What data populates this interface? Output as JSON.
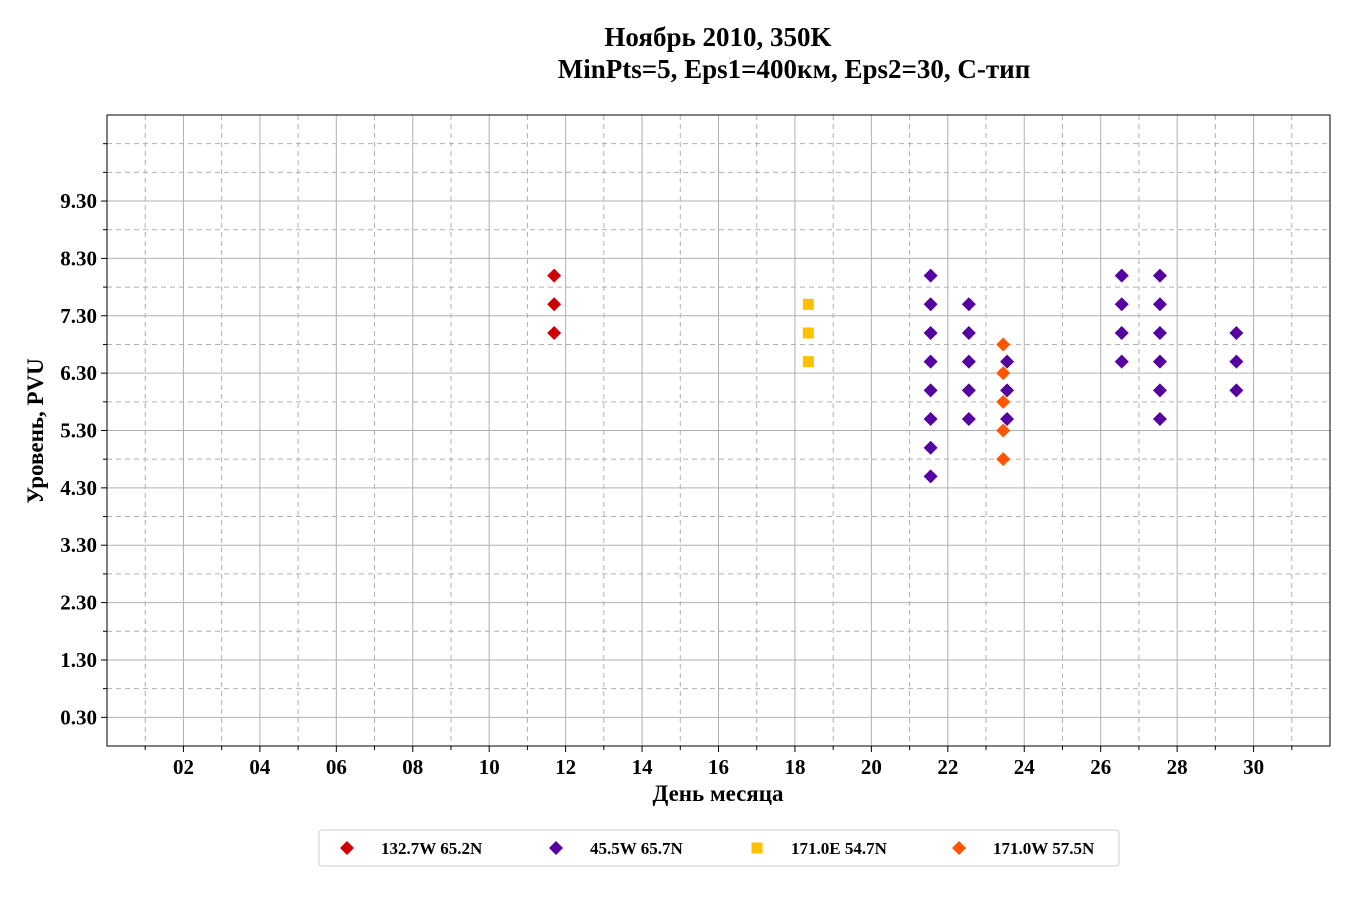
{
  "chart_data": {
    "type": "scatter",
    "title": "Ноябрь 2010, 350K",
    "subtitle": "MinPts=5, Eps1=400км, Eps2=30, C-тип",
    "xlabel": "День месяца",
    "ylabel": "Уровень, PVU",
    "xlim": [
      0,
      32
    ],
    "ylim": [
      -0.2,
      10.8
    ],
    "x_ticks": [
      2,
      4,
      6,
      8,
      10,
      12,
      14,
      16,
      18,
      20,
      22,
      24,
      26,
      28,
      30
    ],
    "x_tick_labels": [
      "02",
      "04",
      "06",
      "08",
      "10",
      "12",
      "14",
      "16",
      "18",
      "20",
      "22",
      "24",
      "26",
      "28",
      "30"
    ],
    "x_minor_ticks": [
      1,
      3,
      5,
      7,
      9,
      11,
      13,
      15,
      17,
      19,
      21,
      23,
      25,
      27,
      29,
      31
    ],
    "y_ticks": [
      0.3,
      1.3,
      2.3,
      3.3,
      4.3,
      5.3,
      6.3,
      7.3,
      8.3,
      9.3
    ],
    "y_tick_labels": [
      "0.30",
      "1.30",
      "2.30",
      "3.30",
      "4.30",
      "5.30",
      "6.30",
      "7.30",
      "8.30",
      "9.30"
    ],
    "y_minor_ticks": [
      0.8,
      1.8,
      2.8,
      3.8,
      4.8,
      5.8,
      6.8,
      7.8,
      8.8,
      9.8,
      10.3
    ],
    "grid": true,
    "legend_position": "bottom-center",
    "series": [
      {
        "name": "132.7W 65.2N",
        "color": "#cc0000",
        "marker": "diamond",
        "points": [
          [
            11.7,
            8.0
          ],
          [
            11.7,
            7.5
          ],
          [
            11.7,
            7.0
          ]
        ]
      },
      {
        "name": "45.5W 65.7N",
        "color": "#5500a0",
        "marker": "diamond",
        "points": [
          [
            21.55,
            8.0
          ],
          [
            21.55,
            7.5
          ],
          [
            21.55,
            7.0
          ],
          [
            21.55,
            6.5
          ],
          [
            21.55,
            6.0
          ],
          [
            21.55,
            5.5
          ],
          [
            21.55,
            5.0
          ],
          [
            21.55,
            4.5
          ],
          [
            22.55,
            7.5
          ],
          [
            22.55,
            7.0
          ],
          [
            22.55,
            6.5
          ],
          [
            22.55,
            6.0
          ],
          [
            22.55,
            5.5
          ],
          [
            23.55,
            6.5
          ],
          [
            23.55,
            6.0
          ],
          [
            23.55,
            5.5
          ],
          [
            26.55,
            8.0
          ],
          [
            26.55,
            7.5
          ],
          [
            26.55,
            7.0
          ],
          [
            26.55,
            6.5
          ],
          [
            27.55,
            8.0
          ],
          [
            27.55,
            7.5
          ],
          [
            27.55,
            7.0
          ],
          [
            27.55,
            6.5
          ],
          [
            27.55,
            6.0
          ],
          [
            27.55,
            5.5
          ],
          [
            29.55,
            7.0
          ],
          [
            29.55,
            6.5
          ],
          [
            29.55,
            6.0
          ]
        ]
      },
      {
        "name": "171.0E 54.7N",
        "color": "#ffc000",
        "marker": "square",
        "points": [
          [
            18.35,
            7.5
          ],
          [
            18.35,
            7.0
          ],
          [
            18.35,
            6.5
          ]
        ]
      },
      {
        "name": "171.0W 57.5N",
        "color": "#ff5500",
        "marker": "diamond",
        "points": [
          [
            23.45,
            6.8
          ],
          [
            23.45,
            6.3
          ],
          [
            23.45,
            5.8
          ],
          [
            23.45,
            5.3
          ],
          [
            23.45,
            4.8
          ]
        ]
      }
    ]
  }
}
